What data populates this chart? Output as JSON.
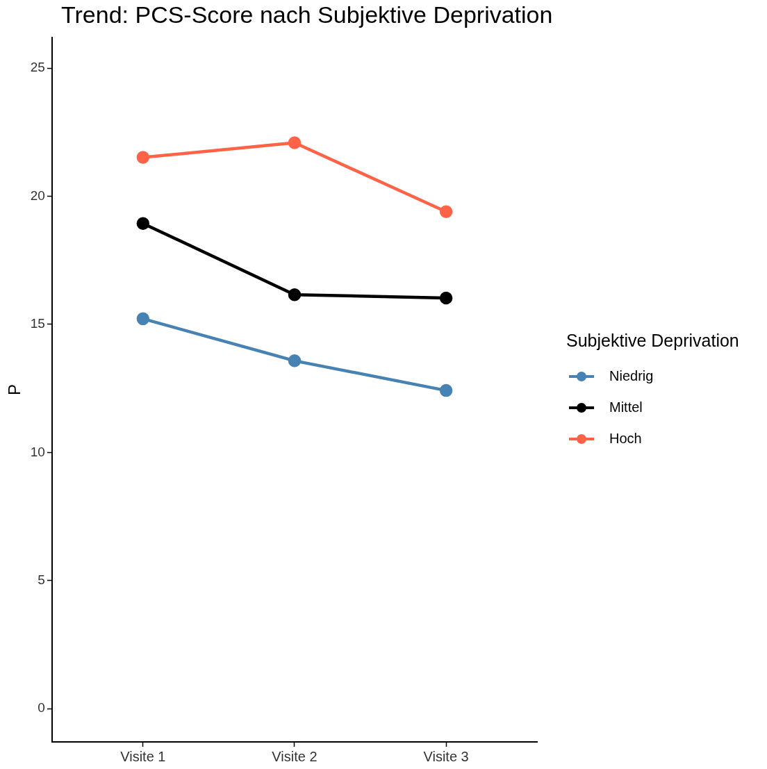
{
  "chart_data": {
    "type": "line",
    "title": "Trend: PCS-Score nach Subjektive Deprivation",
    "ylabel": "P",
    "legend_title": "Subjektive Deprivation",
    "categories": [
      "Visite 1",
      "Visite 2",
      "Visite 3"
    ],
    "series": [
      {
        "name": "Niedrig",
        "color": "#4682b4",
        "values": [
          15.22,
          13.58,
          12.42
        ]
      },
      {
        "name": "Mittel",
        "color": "#000000",
        "values": [
          18.94,
          16.16,
          16.03
        ]
      },
      {
        "name": "Hoch",
        "color": "#ff6347",
        "values": [
          21.52,
          22.09,
          19.4
        ]
      }
    ],
    "ylim": [
      -1.3,
      26.2
    ],
    "yticks": [
      0,
      5,
      10,
      15,
      20,
      25
    ],
    "grid": false,
    "legend": "right",
    "marker": "circle",
    "line_style": "solid"
  }
}
